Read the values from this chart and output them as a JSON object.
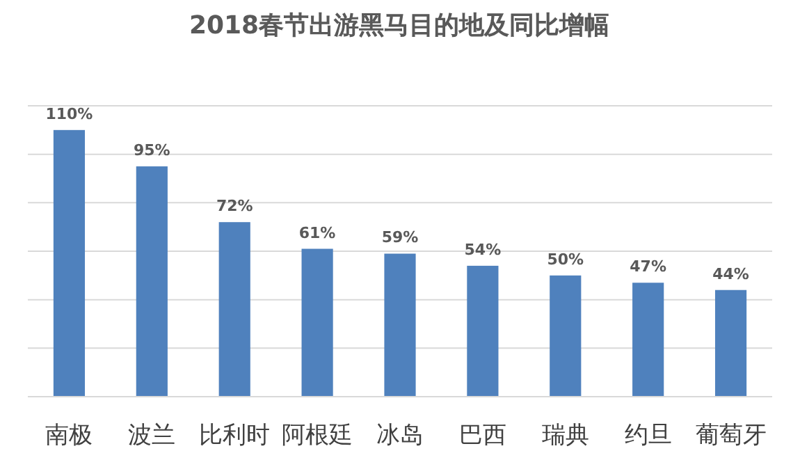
{
  "chart_data": {
    "type": "bar",
    "title": "2018春节出游黑马目的地及同比增幅",
    "categories": [
      "南极",
      "波兰",
      "比利时",
      "阿根廷",
      "冰岛",
      "巴西",
      "瑞典",
      "约旦",
      "葡萄牙"
    ],
    "values": [
      110,
      95,
      72,
      61,
      59,
      54,
      50,
      47,
      44
    ],
    "value_labels": [
      "110%",
      "95%",
      "72%",
      "61%",
      "59%",
      "54%",
      "50%",
      "47%",
      "44%"
    ],
    "color": "#4f81bd",
    "ylim": [
      0,
      120
    ],
    "yticks": [
      {
        "value": 0,
        "label": null
      },
      {
        "value": 20,
        "label": null
      },
      {
        "value": 40,
        "label": null
      },
      {
        "value": 60,
        "label": null
      },
      {
        "value": 80,
        "label": null
      },
      {
        "value": 100,
        "label": null
      },
      {
        "value": 120,
        "label": null
      }
    ],
    "grid": "y",
    "tick_labels": "x"
  }
}
